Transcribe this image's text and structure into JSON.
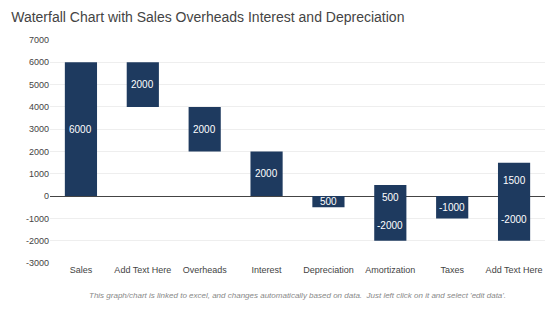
{
  "chart_data": {
    "type": "bar",
    "title": "Waterfall Chart with Sales Overheads Interest and Depreciation",
    "categories": [
      "Sales",
      "Add Text Here",
      "Overheads",
      "Interest",
      "Depreciation",
      "Amortization",
      "Taxes",
      "Add Text Here"
    ],
    "values": [
      6000,
      2000,
      2000,
      2000,
      500,
      2500,
      1000,
      3500
    ],
    "bottoms": [
      0,
      4000,
      2000,
      0,
      -500,
      -2000,
      -1000,
      -2000
    ],
    "color": "#1e3a5f",
    "annotations": [
      [
        "6000"
      ],
      [
        "2000"
      ],
      [
        "2000"
      ],
      [
        "2000"
      ],
      [
        "500"
      ],
      [
        "500",
        "-2000"
      ],
      [
        "-1000"
      ],
      [
        "1500",
        "-2000"
      ]
    ],
    "footer": "This graph/chart is linked to excel, and changes automatically based on data.  Just left click on it and select 'edit data'.",
    "ylim": [
      -3000,
      7000
    ],
    "yticks": [
      -3000,
      -2000,
      -1000,
      0,
      1000,
      2000,
      3000,
      4000,
      5000,
      6000,
      7000
    ],
    "grid": true
  }
}
